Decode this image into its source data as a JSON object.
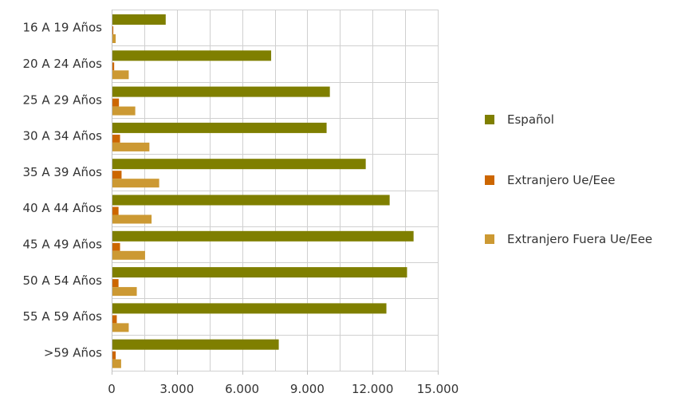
{
  "chart_data": {
    "type": "bar",
    "orientation": "horizontal",
    "categories": [
      "16 A 19 Años",
      "20 A 24 Años",
      "25 A 29 Años",
      "30 A 34 Años",
      "35 A 39 Años",
      "40 A 44 Años",
      "45 A 49 Años",
      "50 A 54 Años",
      "55 A 59 Años",
      ">59 Años"
    ],
    "series": [
      {
        "name": "Español",
        "color": "#7f7f00",
        "values": [
          2450,
          7300,
          10000,
          9850,
          11650,
          12750,
          13850,
          13550,
          12600,
          7650
        ]
      },
      {
        "name": "Extranjero Ue/Eee",
        "color": "#cc6600",
        "values": [
          40,
          80,
          300,
          350,
          420,
          280,
          350,
          280,
          200,
          150
        ]
      },
      {
        "name": "Extranjero Fuera Ue/Eee",
        "color": "#cc9933",
        "values": [
          150,
          750,
          1050,
          1700,
          2150,
          1800,
          1500,
          1120,
          750,
          400
        ]
      }
    ],
    "xticks": [
      "0",
      "3.000",
      "6.000",
      "9.000",
      "12.000",
      "15.000"
    ],
    "xlim": [
      0,
      15000
    ],
    "grid": true,
    "legend_position": "right"
  }
}
